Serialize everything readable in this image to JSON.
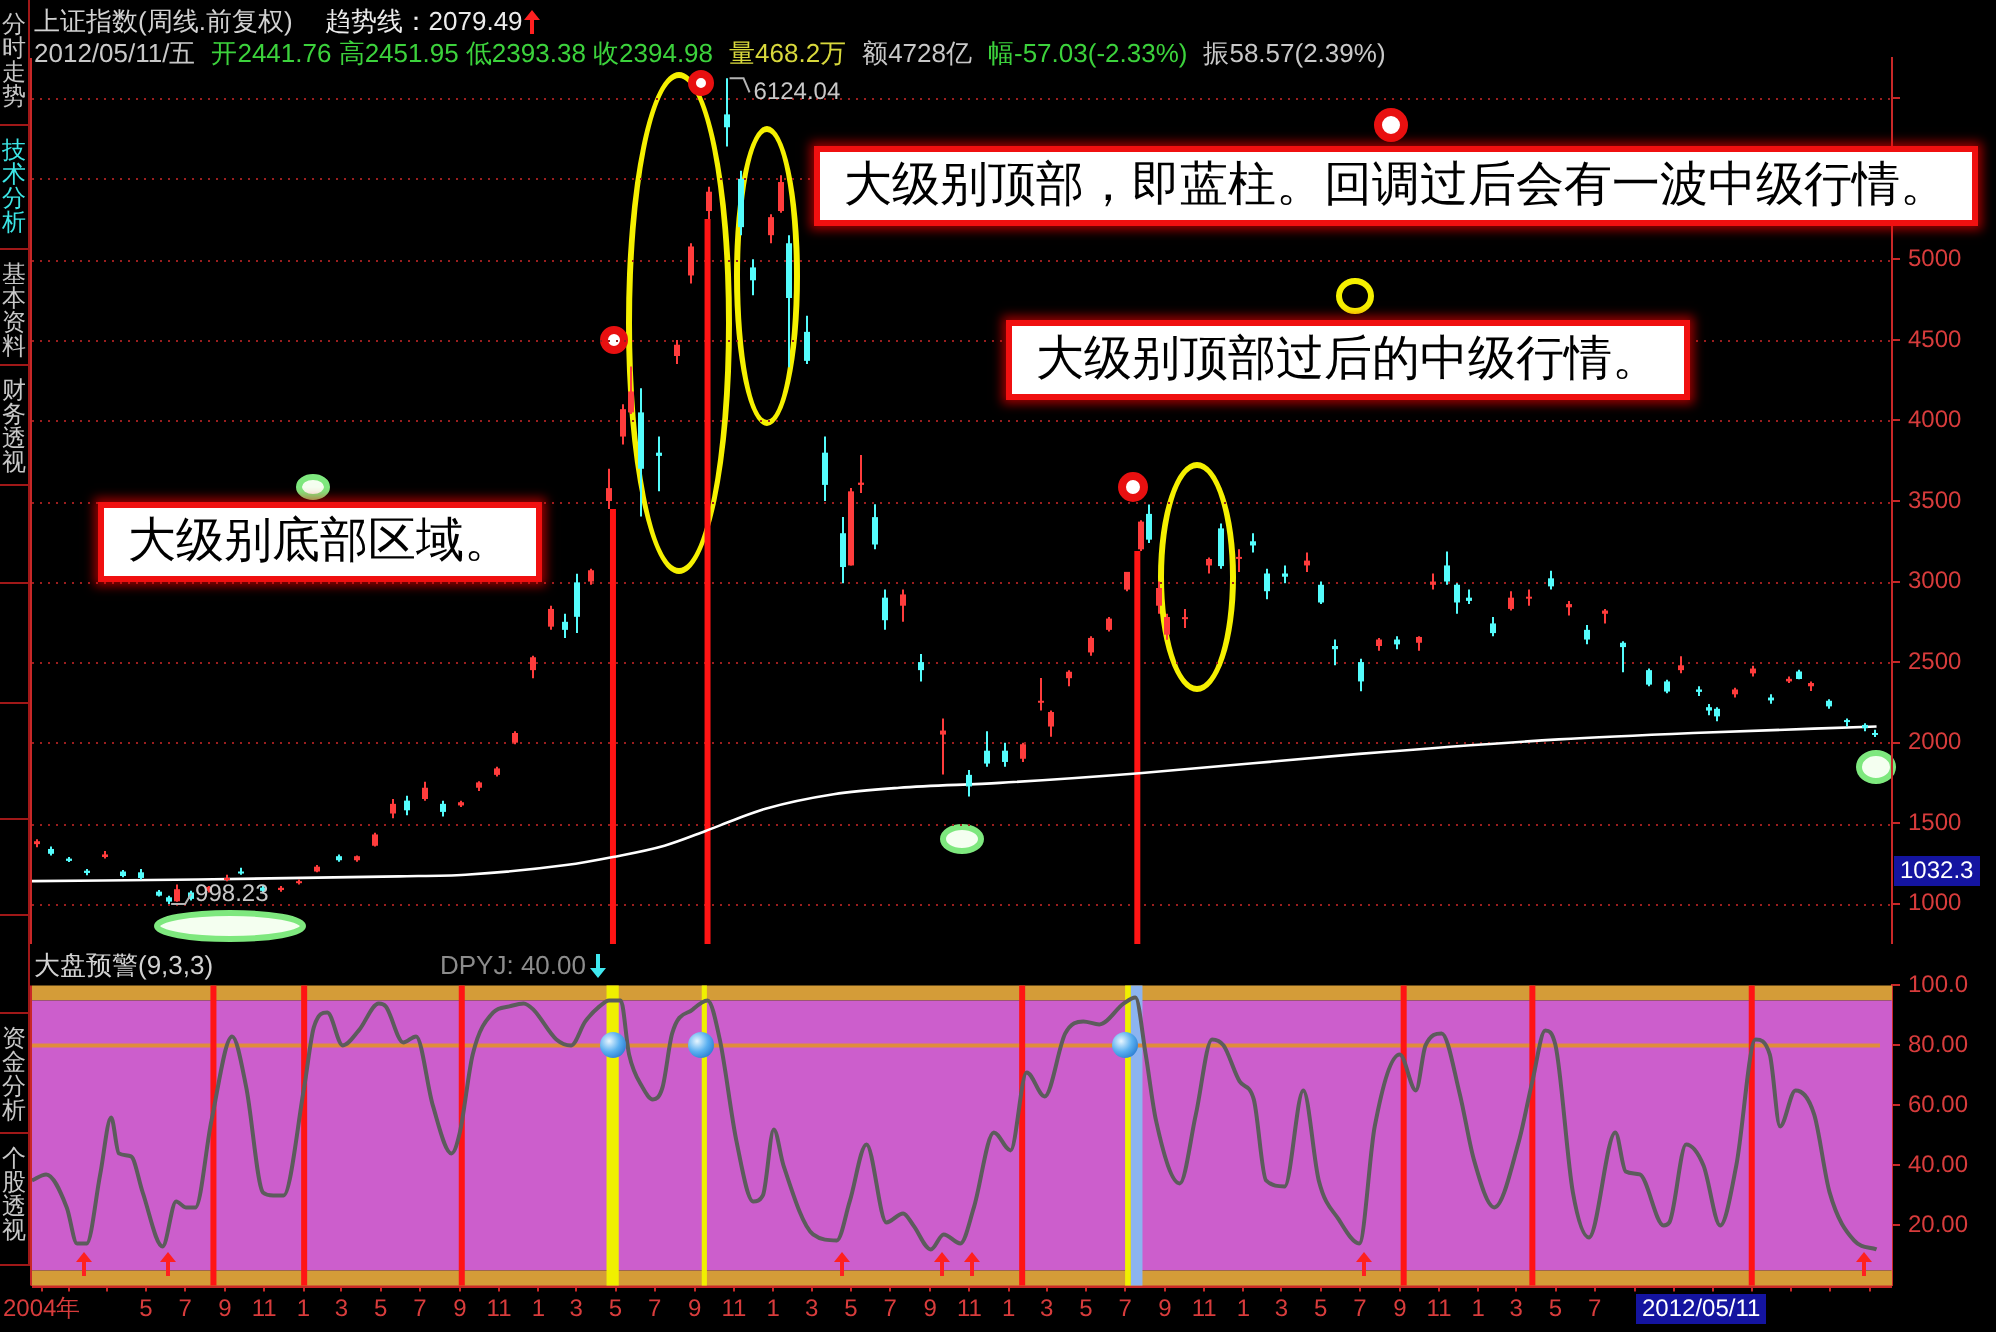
{
  "chart_data": [
    {
      "type": "candlestick",
      "title": "上证指数(周线.前复权)",
      "x": [
        "2004-11-12",
        "2004-12-03",
        "2004-12-31",
        "2005-01-28",
        "2005-02-25",
        "2005-03-25",
        "2005-04-22",
        "2005-05-20",
        "2005-06-03",
        "2005-06-17",
        "2005-07-08",
        "2005-08-05",
        "2005-09-02",
        "2005-09-23",
        "2005-10-28",
        "2005-11-25",
        "2005-12-23",
        "2006-01-20",
        "2006-02-24",
        "2006-03-24",
        "2006-04-21",
        "2006-05-19",
        "2006-06-09",
        "2006-07-07",
        "2006-08-04",
        "2006-09-01",
        "2006-09-29",
        "2006-10-27",
        "2006-11-24",
        "2006-12-22",
        "2007-01-19",
        "2007-02-09",
        "2007-03-02",
        "2007-03-23",
        "2007-04-20",
        "2007-05-11",
        "2007-05-25",
        "2007-06-08",
        "2007-07-06",
        "2007-08-03",
        "2007-08-24",
        "2007-09-21",
        "2007-10-19",
        "2007-11-09",
        "2007-11-30",
        "2007-12-28",
        "2008-01-11",
        "2008-01-25",
        "2008-02-22",
        "2008-03-21",
        "2008-04-18",
        "2008-04-30",
        "2008-05-16",
        "2008-06-06",
        "2008-06-20",
        "2008-07-18",
        "2008-08-15",
        "2008-09-19",
        "2008-10-31",
        "2008-11-28",
        "2008-12-26",
        "2009-01-23",
        "2009-02-20",
        "2009-03-06",
        "2009-04-03",
        "2009-05-08",
        "2009-06-05",
        "2009-07-03",
        "2009-07-24",
        "2009-08-07",
        "2009-08-21",
        "2009-09-04",
        "2009-09-30",
        "2009-11-06",
        "2009-11-27",
        "2009-12-25",
        "2010-01-15",
        "2010-02-05",
        "2010-03-05",
        "2010-04-09",
        "2010-04-30",
        "2010-05-21",
        "2010-07-02",
        "2010-07-30",
        "2010-08-27",
        "2010-09-30",
        "2010-10-22",
        "2010-11-12",
        "2010-11-26",
        "2010-12-17",
        "2011-01-21",
        "2011-02-18",
        "2011-03-18",
        "2011-04-22",
        "2011-05-20",
        "2011-06-17",
        "2011-07-15",
        "2011-08-12",
        "2011-09-23",
        "2011-10-21",
        "2011-11-11",
        "2011-12-09",
        "2011-12-23",
        "2012-01-06",
        "2012-02-03",
        "2012-03-02",
        "2012-03-30",
        "2012-04-27",
        "2012-05-11",
        "2012-06-01",
        "2012-06-29",
        "2012-07-27",
        "2012-08-24",
        "2012-09-07"
      ],
      "ohlc": [
        [
          1370,
          1400,
          1350,
          1388
        ],
        [
          1340,
          1355,
          1300,
          1310
        ],
        [
          1280,
          1290,
          1259,
          1266
        ],
        [
          1205,
          1215,
          1177,
          1191
        ],
        [
          1290,
          1328,
          1280,
          1306
        ],
        [
          1200,
          1210,
          1165,
          1172
        ],
        [
          1195,
          1215,
          1150,
          1160
        ],
        [
          1075,
          1085,
          1045,
          1050
        ],
        [
          1040,
          1050,
          998.23,
          1013
        ],
        [
          1015,
          1120,
          1012,
          1090
        ],
        [
          1070,
          1080,
          1020,
          1030
        ],
        [
          1080,
          1110,
          1070,
          1105
        ],
        [
          1150,
          1180,
          1140,
          1160
        ],
        [
          1200,
          1223,
          1180,
          1190
        ],
        [
          1100,
          1110,
          1067,
          1080
        ],
        [
          1085,
          1110,
          1074,
          1099
        ],
        [
          1130,
          1150,
          1120,
          1140
        ],
        [
          1200,
          1240,
          1195,
          1230
        ],
        [
          1295,
          1305,
          1260,
          1270
        ],
        [
          1270,
          1300,
          1260,
          1295
        ],
        [
          1360,
          1440,
          1355,
          1430
        ],
        [
          1560,
          1650,
          1530,
          1620
        ],
        [
          1640,
          1670,
          1550,
          1580
        ],
        [
          1650,
          1757,
          1640,
          1720
        ],
        [
          1620,
          1640,
          1541,
          1570
        ],
        [
          1610,
          1640,
          1600,
          1630
        ],
        [
          1720,
          1760,
          1700,
          1753
        ],
        [
          1800,
          1850,
          1790,
          1840
        ],
        [
          2000,
          2070,
          1990,
          2060
        ],
        [
          2450,
          2540,
          2400,
          2530
        ],
        [
          2720,
          2850,
          2700,
          2830
        ],
        [
          2750,
          2800,
          2650,
          2700
        ],
        [
          2995,
          3049,
          2680,
          2781
        ],
        [
          3000,
          3080,
          2980,
          3070
        ],
        [
          3500,
          3700,
          3450,
          3580
        ],
        [
          3900,
          4100,
          3850,
          4070
        ],
        [
          4050,
          4335,
          4040,
          4180
        ],
        [
          4050,
          4200,
          3404,
          3700
        ],
        [
          3800,
          3900,
          3560,
          3780
        ],
        [
          4400,
          4500,
          4350,
          4470
        ],
        [
          4900,
          5100,
          4850,
          5080
        ],
        [
          5300,
          5450,
          5250,
          5420
        ],
        [
          5900,
          6124.04,
          5700,
          5820
        ],
        [
          5500,
          5550,
          5150,
          5200
        ],
        [
          4950,
          5000,
          4778,
          4870
        ],
        [
          5150,
          5280,
          5100,
          5262
        ],
        [
          5300,
          5522,
          5290,
          5480
        ],
        [
          5100,
          5150,
          4330,
          4760
        ],
        [
          4550,
          4650,
          4350,
          4370
        ],
        [
          3800,
          3900,
          3500,
          3600
        ],
        [
          3300,
          3400,
          2990,
          3090
        ],
        [
          3100,
          3580,
          3100,
          3560
        ],
        [
          3600,
          3786,
          3550,
          3614
        ],
        [
          3400,
          3480,
          3200,
          3230
        ],
        [
          2900,
          2950,
          2700,
          2760
        ],
        [
          2850,
          2950,
          2750,
          2920
        ],
        [
          2500,
          2550,
          2380,
          2450
        ],
        [
          2050,
          2150,
          1802,
          2075
        ],
        [
          1800,
          1830,
          1665,
          1728
        ],
        [
          1950,
          2070,
          1850,
          1870
        ],
        [
          1950,
          2000,
          1850,
          1880
        ],
        [
          1900,
          2000,
          1880,
          1990
        ],
        [
          2250,
          2402,
          2200,
          2260
        ],
        [
          2100,
          2200,
          2037,
          2190
        ],
        [
          2400,
          2450,
          2350,
          2440
        ],
        [
          2560,
          2660,
          2540,
          2650
        ],
        [
          2700,
          2780,
          2690,
          2770
        ],
        [
          2950,
          3060,
          2940,
          3060
        ],
        [
          3200,
          3380,
          3190,
          3372
        ],
        [
          3420,
          3478,
          3240,
          3260
        ],
        [
          2850,
          3000,
          2800,
          2960
        ],
        [
          2670,
          2800,
          2639,
          2780
        ],
        [
          2770,
          2830,
          2712,
          2779
        ],
        [
          3100,
          3150,
          3050,
          3140
        ],
        [
          3330,
          3361,
          3080,
          3096
        ],
        [
          3150,
          3200,
          3060,
          3153
        ],
        [
          3250,
          3300,
          3180,
          3224
        ],
        [
          3050,
          3080,
          2890,
          2940
        ],
        [
          3050,
          3100,
          2990,
          3030
        ],
        [
          3100,
          3181,
          3060,
          3130
        ],
        [
          2980,
          3000,
          2860,
          2870
        ],
        [
          2600,
          2640,
          2481,
          2580
        ],
        [
          2500,
          2520,
          2319,
          2380
        ],
        [
          2600,
          2650,
          2570,
          2640
        ],
        [
          2640,
          2660,
          2580,
          2610
        ],
        [
          2620,
          2660,
          2570,
          2656
        ],
        [
          2980,
          3050,
          2950,
          3000
        ],
        [
          3100,
          3186,
          2980,
          3000
        ],
        [
          2980,
          2990,
          2800,
          2870
        ],
        [
          2900,
          2950,
          2860,
          2880
        ],
        [
          2740,
          2780,
          2661,
          2680
        ],
        [
          2830,
          2940,
          2820,
          2900
        ],
        [
          2900,
          2950,
          2850,
          2906
        ],
        [
          3020,
          3067,
          2950,
          2970
        ],
        [
          2840,
          2880,
          2790,
          2860
        ],
        [
          2700,
          2730,
          2610,
          2640
        ],
        [
          2800,
          2830,
          2740,
          2820
        ],
        [
          2620,
          2630,
          2437,
          2593
        ],
        [
          2450,
          2460,
          2350,
          2360
        ],
        [
          2380,
          2390,
          2307,
          2317
        ],
        [
          2450,
          2536,
          2430,
          2480
        ],
        [
          2330,
          2350,
          2290,
          2315
        ],
        [
          2220,
          2240,
          2170,
          2199
        ],
        [
          2210,
          2220,
          2132,
          2163
        ],
        [
          2300,
          2340,
          2280,
          2330
        ],
        [
          2430,
          2478,
          2410,
          2460
        ],
        [
          2280,
          2300,
          2242,
          2262
        ],
        [
          2380,
          2410,
          2370,
          2396
        ],
        [
          2441.76,
          2451.95,
          2393.38,
          2394.98
        ],
        [
          2350,
          2380,
          2320,
          2370
        ],
        [
          2260,
          2270,
          2210,
          2225
        ],
        [
          2140,
          2150,
          2100,
          2130
        ],
        [
          2110,
          2120,
          2070,
          2090
        ],
        [
          2060,
          2080,
          2035,
          2050
        ]
      ],
      "colors": [
        "#ff3c3c",
        "#54fcfc",
        "#54fcfc",
        "#54fcfc",
        "#ff3c3c",
        "#54fcfc",
        "#54fcfc",
        "#54fcfc",
        "#54fcfc",
        "#ff3c3c",
        "#54fcfc",
        "#ff3c3c",
        "#ff3c3c",
        "#54fcfc",
        "#54fcfc",
        "#ff3c3c",
        "#ff3c3c",
        "#ff3c3c",
        "#54fcfc",
        "#ff3c3c",
        "#ff3c3c",
        "#ff3c3c",
        "#54fcfc",
        "#ff3c3c",
        "#54fcfc",
        "#ff3c3c",
        "#ff3c3c",
        "#ff3c3c",
        "#ff3c3c",
        "#ff3c3c",
        "#ff3c3c",
        "#54fcfc",
        "#54fcfc",
        "#ff3c3c",
        "#ff3c3c",
        "#ff3c3c",
        "#ff3c3c",
        "#54fcfc",
        "#54fcfc",
        "#ff3c3c",
        "#ff3c3c",
        "#ff3c3c",
        "#54fcfc",
        "#54fcfc",
        "#54fcfc",
        "#ff3c3c",
        "#ff3c3c",
        "#54fcfc",
        "#54fcfc",
        "#54fcfc",
        "#54fcfc",
        "#ff3c3c",
        "#ff3c3c",
        "#54fcfc",
        "#54fcfc",
        "#ff3c3c",
        "#54fcfc",
        "#ff3c3c",
        "#54fcfc",
        "#54fcfc",
        "#54fcfc",
        "#ff3c3c",
        "#ff3c3c",
        "#ff3c3c",
        "#ff3c3c",
        "#ff3c3c",
        "#ff3c3c",
        "#ff3c3c",
        "#ff3c3c",
        "#54fcfc",
        "#ff3c3c",
        "#ff3c3c",
        "#ff3c3c",
        "#ff3c3c",
        "#54fcfc",
        "#ff3c3c",
        "#54fcfc",
        "#54fcfc",
        "#54fcfc",
        "#ff3c3c",
        "#54fcfc",
        "#54fcfc",
        "#54fcfc",
        "#ff3c3c",
        "#54fcfc",
        "#ff3c3c",
        "#ff3c3c",
        "#54fcfc",
        "#54fcfc",
        "#54fcfc",
        "#54fcfc",
        "#ff3c3c",
        "#ff3c3c",
        "#54fcfc",
        "#ff3c3c",
        "#54fcfc",
        "#ff3c3c",
        "#54fcfc",
        "#54fcfc",
        "#54fcfc",
        "#ff3c3c",
        "#54fcfc",
        "#54fcfc",
        "#54fcfc",
        "#ff3c3c",
        "#ff3c3c",
        "#54fcfc",
        "#ff3c3c",
        "#54fcfc",
        "#ff3c3c",
        "#54fcfc",
        "#54fcfc",
        "#54fcfc",
        "#54fcfc"
      ],
      "series": [
        {
          "type": "line",
          "color": "#ffffff",
          "x": [
            "2004-11-05",
            "2005-07-22",
            "2006-05-29",
            "2006-09-10",
            "2007-02-13",
            "2007-04-27",
            "2007-07-16",
            "2007-09-17",
            "2007-11-01",
            "2007-12-20",
            "2008-04-04",
            "2008-07-15",
            "2008-12-18",
            "2009-07-23",
            "2010-06-30",
            "2011-05-06",
            "2011-12-01",
            "2012-09-11"
          ],
          "values": [
            1140,
            1150,
            1170,
            1180,
            1240,
            1290,
            1360,
            1450,
            1520,
            1590,
            1680,
            1720,
            1750,
            1810,
            1930,
            2020,
            2060,
            2100
          ]
        }
      ],
      "xlim": [
        "2004-11-05",
        "2012-10-05"
      ],
      "ylim": [
        750,
        6250
      ],
      "yticks": [
        1000,
        1500,
        2000,
        2500,
        3000,
        3500,
        4000,
        4500,
        5000,
        {
          "value": 5500,
          "label": null
        },
        {
          "value": 6000,
          "label": null
        }
      ],
      "tick_labels": "y",
      "grid": "y",
      "ref_lines": [
        {
          "axis": "x",
          "value": "2007-04-27",
          "color": "#ff1414"
        },
        {
          "axis": "x",
          "value": "2007-09-21",
          "color": "#ff1414"
        },
        {
          "axis": "x",
          "value": "2009-07-20",
          "color": "#ff1414"
        }
      ],
      "annotations": [
        "2012/05/11/五",
        "开2441.76 高2451.95 低2393.38 收2394.98",
        "量468.2万",
        "额4728亿",
        "幅-57.03(-2.33%)",
        "振58.57(2.39%)",
        "趋势线：2079.49",
        "大级别顶部，即蓝柱。回调过后会有一波中级行情。",
        "大级别顶部过后的中级行情。",
        "大级别底部区域。",
        {
          "text": "6124.04",
          "x": "2007-10-19",
          "y": 6124.04
        },
        {
          "text": "998.23",
          "x": "2005-06-03",
          "y": 998.23
        },
        "1032.3",
        "2012/05/11",
        "分时走势",
        "技术分析",
        "基本资料",
        "财务透视",
        "资金分析",
        "个股透视"
      ]
    },
    {
      "type": "line",
      "title": "大盘预警(9,3,3)",
      "x": [
        "2004-11-05",
        "2004-11-27",
        "2004-12-29",
        "2005-01-14",
        "2005-01-29",
        "2005-02-19",
        "2005-03-08",
        "2005-03-20",
        "2005-04-08",
        "2005-04-26",
        "2005-05-27",
        "2005-06-17",
        "2005-07-02",
        "2005-07-17",
        "2005-08-11",
        "2005-09-12",
        "2005-10-04",
        "2005-10-30",
        "2005-11-15",
        "2005-12-01",
        "2006-01-02",
        "2006-01-17",
        "2006-02-07",
        "2006-03-03",
        "2006-03-28",
        "2006-04-28",
        "2006-05-09",
        "2006-06-05",
        "2006-06-25",
        "2006-07-21",
        "2006-08-19",
        "2006-09-01",
        "2006-09-21",
        "2006-10-23",
        "2006-11-17",
        "2006-12-09",
        "2006-12-24",
        "2007-01-29",
        "2007-02-21",
        "2007-03-15",
        "2007-04-06",
        "2007-04-21",
        "2007-05-09",
        "2007-05-22",
        "2007-06-12",
        "2007-06-28",
        "2007-07-13",
        "2007-07-28",
        "2007-08-29",
        "2007-09-21",
        "2007-10-10",
        "2007-11-05",
        "2007-12-01",
        "2007-12-16",
        "2008-01-02",
        "2008-01-17",
        "2008-03-03",
        "2008-04-09",
        "2008-04-29",
        "2008-05-25",
        "2008-06-25",
        "2008-07-21",
        "2008-08-06",
        "2008-09-02",
        "2008-09-22",
        "2008-10-18",
        "2008-11-08",
        "2008-12-09",
        "2009-01-04",
        "2009-01-29",
        "2009-02-26",
        "2009-03-30",
        "2009-04-27",
        "2009-05-22",
        "2009-06-29",
        "2009-07-17",
        "2009-08-02",
        "2009-08-18",
        "2009-09-24",
        "2009-10-19",
        "2009-11-13",
        "2009-12-01",
        "2009-12-26",
        "2010-01-17",
        "2010-02-05",
        "2010-03-06",
        "2010-04-04",
        "2010-04-28",
        "2010-05-29",
        "2010-06-30",
        "2010-07-24",
        "2010-09-01",
        "2010-09-26",
        "2010-10-11",
        "2010-11-05",
        "2010-12-03",
        "2010-12-25",
        "2011-01-26",
        "2011-03-05",
        "2011-03-26",
        "2011-04-15",
        "2011-05-01",
        "2011-05-28",
        "2011-06-22",
        "2011-08-02",
        "2011-08-18",
        "2011-09-09",
        "2011-10-16",
        "2011-10-25",
        "2011-11-20",
        "2011-12-17",
        "2012-01-12",
        "2012-02-06",
        "2012-03-07",
        "2012-03-29",
        "2012-04-14",
        "2012-05-08",
        "2012-06-06",
        "2012-06-30",
        "2012-08-07",
        "2012-09-11"
      ],
      "series": [
        {
          "color": "#5c5c5c",
          "values": [
            35,
            37,
            26,
            14,
            14,
            37,
            56,
            44,
            43,
            31,
            13,
            28,
            26,
            26,
            55,
            83,
            66,
            31,
            30,
            30,
            66,
            86,
            91,
            80,
            85,
            94,
            93,
            81,
            83,
            60,
            44,
            51,
            77,
            91,
            93,
            94,
            92,
            82,
            80,
            88,
            93,
            95,
            95,
            77,
            66,
            62,
            66,
            84,
            92,
            95,
            82,
            48,
            28,
            30,
            52,
            40,
            17,
            15,
            28,
            47,
            21,
            24,
            20,
            12,
            17,
            14,
            26,
            51,
            45,
            71,
            63,
            84,
            88,
            87,
            94,
            96,
            77,
            55,
            34,
            57,
            82,
            80,
            68,
            62,
            35,
            33,
            65,
            35,
            22,
            14,
            53,
            77,
            65,
            80,
            84,
            64,
            42,
            26,
            48,
            68,
            85,
            80,
            31,
            16,
            51,
            38,
            37,
            20,
            21,
            47,
            40,
            20,
            40,
            82,
            77,
            53,
            65,
            57,
            31,
            15,
            12
          ]
        }
      ],
      "xlim": [
        "2004-11-05",
        "2012-10-05"
      ],
      "ylim": [
        0,
        100
      ],
      "xticks": [
        {
          "value": "2004-11-20",
          "label": "2004年"
        },
        {
          "value": "2005-01",
          "label": null
        },
        {
          "value": "2005-03",
          "label": null
        },
        {
          "value": "2005-05",
          "label": "5"
        },
        {
          "value": "2005-07",
          "label": "7"
        },
        {
          "value": "2005-09",
          "label": "9"
        },
        {
          "value": "2005-11",
          "label": "11"
        },
        {
          "value": "2006-01",
          "label": "1"
        },
        {
          "value": "2006-03",
          "label": "3"
        },
        {
          "value": "2006-05",
          "label": "5"
        },
        {
          "value": "2006-07",
          "label": "7"
        },
        {
          "value": "2006-09",
          "label": "9"
        },
        {
          "value": "2006-11",
          "label": "11"
        },
        {
          "value": "2007-01",
          "label": "1"
        },
        {
          "value": "2007-03",
          "label": "3"
        },
        {
          "value": "2007-05",
          "label": "5"
        },
        {
          "value": "2007-07",
          "label": "7"
        },
        {
          "value": "2007-09",
          "label": "9"
        },
        {
          "value": "2007-11",
          "label": "11"
        },
        {
          "value": "2008-01",
          "label": "1"
        },
        {
          "value": "2008-03",
          "label": "3"
        },
        {
          "value": "2008-05",
          "label": "5"
        },
        {
          "value": "2008-07",
          "label": "7"
        },
        {
          "value": "2008-09",
          "label": "9"
        },
        {
          "value": "2008-11",
          "label": "11"
        },
        {
          "value": "2009-01",
          "label": "1"
        },
        {
          "value": "2009-03",
          "label": "3"
        },
        {
          "value": "2009-05",
          "label": "5"
        },
        {
          "value": "2009-07",
          "label": "7"
        },
        {
          "value": "2009-09",
          "label": "9"
        },
        {
          "value": "2009-11",
          "label": "11"
        },
        {
          "value": "2010-01",
          "label": "1"
        },
        {
          "value": "2010-03",
          "label": "3"
        },
        {
          "value": "2010-05",
          "label": "5"
        },
        {
          "value": "2010-07",
          "label": "7"
        },
        {
          "value": "2010-09",
          "label": "9"
        },
        {
          "value": "2010-11",
          "label": "11"
        },
        {
          "value": "2011-01",
          "label": "1"
        },
        {
          "value": "2011-03",
          "label": "3"
        },
        {
          "value": "2011-05",
          "label": "5"
        },
        {
          "value": "2011-07",
          "label": "7"
        },
        {
          "value": "2011-09",
          "label": null
        },
        {
          "value": "2011-11",
          "label": null
        },
        {
          "value": "2012-01",
          "label": null
        },
        {
          "value": "2012-03",
          "label": null
        },
        {
          "value": "2012-05",
          "label": null
        },
        {
          "value": "2012-07",
          "label": null
        },
        {
          "value": "2012-09",
          "label": null
        }
      ],
      "yticks": [
        {
          "value": 20,
          "label": "20.00"
        },
        {
          "value": 40,
          "label": "40.00"
        },
        {
          "value": 60,
          "label": "60.00"
        },
        {
          "value": 80,
          "label": "80.00"
        },
        {
          "value": 100,
          "label": "100.0"
        }
      ],
      "bands": [
        {
          "axis": "y",
          "from": 95,
          "to": 100,
          "color": "#d49c38"
        },
        {
          "axis": "y",
          "from": 5,
          "to": 95,
          "color": "#cc5ecc"
        },
        {
          "axis": "y",
          "from": 0,
          "to": 5,
          "color": "#d49c38"
        },
        {
          "axis": "x",
          "from": "2007-04-17",
          "to": "2007-05-06",
          "color": "#f0f000"
        },
        {
          "axis": "x",
          "from": "2007-09-12",
          "to": "2007-09-20",
          "color": "#f0f000"
        },
        {
          "axis": "x",
          "from": "2009-07-01",
          "to": "2009-07-10",
          "color": "#f0f000"
        },
        {
          "axis": "x",
          "from": "2009-07-10",
          "to": "2009-07-28",
          "color": "#8cb4f0"
        }
      ],
      "ref_lines": [
        {
          "axis": "y",
          "value": 80,
          "color": "#e08c3c"
        },
        {
          "axis": "x",
          "value": "2005-08-14",
          "color": "#ff1414"
        },
        {
          "axis": "x",
          "value": "2006-01-02",
          "color": "#ff1414"
        },
        {
          "axis": "x",
          "value": "2006-09-04",
          "color": "#ff1414"
        },
        {
          "axis": "x",
          "value": "2009-01-22",
          "color": "#ff1414"
        },
        {
          "axis": "x",
          "value": "2010-09-07",
          "color": "#ff1414"
        },
        {
          "axis": "x",
          "value": "2011-03-26",
          "color": "#ff1414"
        },
        {
          "axis": "x",
          "value": "2012-03-01",
          "color": "#ff1414"
        }
      ],
      "annotations": [
        "DPYJ: 40.00"
      ]
    }
  ]
}
